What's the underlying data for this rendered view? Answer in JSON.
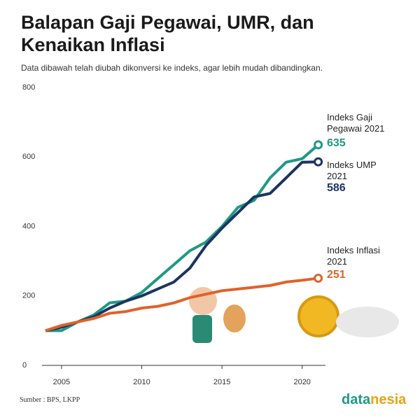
{
  "chart_data": {
    "type": "line",
    "title": "Balapan Gaji Pegawai, UMR, dan Kenaikan Inflasi",
    "subtitle": "Data dibawah telah diubah dikonversi ke indeks, agar lebih mudah dibandingkan.",
    "source": "Sumber : BPS, LKPP",
    "brand": [
      "data",
      "nesia"
    ],
    "x": [
      2004,
      2005,
      2006,
      2007,
      2008,
      2009,
      2010,
      2011,
      2012,
      2013,
      2014,
      2015,
      2016,
      2017,
      2018,
      2019,
      2020,
      2021
    ],
    "series": [
      {
        "name": "Indeks Gaji Pegawai 2021",
        "color": "#1f9a82",
        "values": [
          100,
          100,
          125,
          145,
          180,
          185,
          210,
          250,
          290,
          330,
          355,
          400,
          455,
          475,
          540,
          585,
          595,
          635
        ]
      },
      {
        "name": "Indeks UMP 2021",
        "color": "#1d3461",
        "values": [
          100,
          110,
          125,
          140,
          165,
          185,
          200,
          220,
          240,
          280,
          345,
          395,
          440,
          485,
          495,
          540,
          585,
          586
        ]
      },
      {
        "name": "Indeks Inflasi 2021",
        "color": "#e0622a",
        "values": [
          100,
          115,
          125,
          135,
          150,
          155,
          165,
          170,
          180,
          195,
          205,
          215,
          220,
          225,
          230,
          240,
          245,
          251
        ]
      }
    ],
    "xlim": [
      2004,
      2022.5
    ],
    "xticks": [
      2005,
      2010,
      2015,
      2020
    ],
    "ylim": [
      0,
      800
    ],
    "yticks": [
      0,
      200,
      400,
      600,
      800
    ],
    "grid": false
  }
}
